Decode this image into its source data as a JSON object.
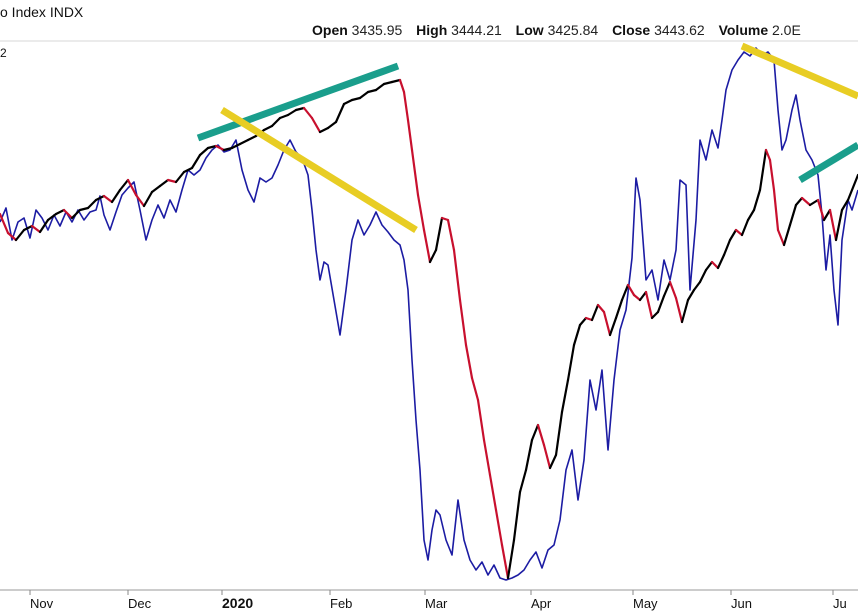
{
  "header": {
    "title": "o Index  INDX",
    "open_label": "Open",
    "open_value": "3435.95",
    "high_label": "High",
    "high_value": "3444.21",
    "low_label": "Low",
    "low_value": "3425.84",
    "close_label": "Close",
    "close_value": "3443.62",
    "volume_label": "Volume",
    "volume_value": "2.0E"
  },
  "y_fragment": "2",
  "chart_data": {
    "type": "line",
    "x_axis": {
      "labels": [
        "Nov",
        "Dec",
        "2020",
        "Feb",
        "Mar",
        "Apr",
        "May",
        "Jun",
        "Ju"
      ],
      "bold_label": "2020"
    },
    "grid": false,
    "series": [
      {
        "role": "price-index",
        "colors": {
          "up": "#000000",
          "down": "#c8102e"
        },
        "values": [
          [
            0,
            214
          ],
          [
            8,
            233
          ],
          [
            16,
            240
          ],
          [
            24,
            230
          ],
          [
            32,
            226
          ],
          [
            40,
            232
          ],
          [
            48,
            220
          ],
          [
            56,
            214
          ],
          [
            64,
            210
          ],
          [
            72,
            218
          ],
          [
            80,
            210
          ],
          [
            88,
            208
          ],
          [
            96,
            200
          ],
          [
            104,
            196
          ],
          [
            112,
            202
          ],
          [
            120,
            190
          ],
          [
            128,
            180
          ],
          [
            136,
            195
          ],
          [
            144,
            206
          ],
          [
            152,
            192
          ],
          [
            160,
            186
          ],
          [
            168,
            180
          ],
          [
            176,
            182
          ],
          [
            184,
            172
          ],
          [
            192,
            168
          ],
          [
            200,
            155
          ],
          [
            208,
            148
          ],
          [
            216,
            146
          ],
          [
            224,
            150
          ],
          [
            232,
            148
          ],
          [
            240,
            144
          ],
          [
            248,
            140
          ],
          [
            256,
            136
          ],
          [
            264,
            130
          ],
          [
            272,
            126
          ],
          [
            280,
            118
          ],
          [
            288,
            115
          ],
          [
            296,
            110
          ],
          [
            304,
            108
          ],
          [
            312,
            118
          ],
          [
            320,
            132
          ],
          [
            328,
            128
          ],
          [
            336,
            122
          ],
          [
            344,
            104
          ],
          [
            352,
            100
          ],
          [
            360,
            98
          ],
          [
            368,
            92
          ],
          [
            376,
            90
          ],
          [
            384,
            84
          ],
          [
            392,
            82
          ],
          [
            400,
            80
          ],
          [
            404,
            92
          ],
          [
            408,
            120
          ],
          [
            412,
            150
          ],
          [
            418,
            195
          ],
          [
            424,
            230
          ],
          [
            430,
            262
          ],
          [
            436,
            250
          ],
          [
            442,
            218
          ],
          [
            448,
            220
          ],
          [
            454,
            250
          ],
          [
            460,
            300
          ],
          [
            466,
            345
          ],
          [
            472,
            378
          ],
          [
            478,
            400
          ],
          [
            484,
            440
          ],
          [
            490,
            475
          ],
          [
            496,
            510
          ],
          [
            502,
            545
          ],
          [
            508,
            578
          ],
          [
            514,
            540
          ],
          [
            520,
            492
          ],
          [
            526,
            470
          ],
          [
            532,
            440
          ],
          [
            538,
            425
          ],
          [
            544,
            445
          ],
          [
            550,
            468
          ],
          [
            556,
            455
          ],
          [
            562,
            412
          ],
          [
            568,
            380
          ],
          [
            574,
            345
          ],
          [
            580,
            325
          ],
          [
            586,
            318
          ],
          [
            592,
            320
          ],
          [
            598,
            305
          ],
          [
            604,
            312
          ],
          [
            610,
            335
          ],
          [
            616,
            318
          ],
          [
            622,
            300
          ],
          [
            628,
            285
          ],
          [
            634,
            295
          ],
          [
            640,
            300
          ],
          [
            646,
            292
          ],
          [
            652,
            318
          ],
          [
            658,
            312
          ],
          [
            664,
            296
          ],
          [
            670,
            282
          ],
          [
            676,
            298
          ],
          [
            682,
            322
          ],
          [
            688,
            300
          ],
          [
            694,
            290
          ],
          [
            700,
            282
          ],
          [
            706,
            270
          ],
          [
            712,
            262
          ],
          [
            718,
            268
          ],
          [
            724,
            255
          ],
          [
            730,
            240
          ],
          [
            736,
            230
          ],
          [
            742,
            235
          ],
          [
            748,
            220
          ],
          [
            754,
            210
          ],
          [
            760,
            190
          ],
          [
            766,
            150
          ],
          [
            770,
            160
          ],
          [
            774,
            190
          ],
          [
            778,
            230
          ],
          [
            784,
            245
          ],
          [
            790,
            225
          ],
          [
            796,
            205
          ],
          [
            802,
            198
          ],
          [
            810,
            205
          ],
          [
            818,
            200
          ],
          [
            824,
            220
          ],
          [
            830,
            210
          ],
          [
            836,
            240
          ],
          [
            842,
            210
          ],
          [
            848,
            200
          ],
          [
            858,
            175
          ]
        ]
      },
      {
        "role": "comparison-index",
        "color": "#1c1ca3",
        "values": [
          [
            0,
            222
          ],
          [
            6,
            208
          ],
          [
            12,
            240
          ],
          [
            18,
            222
          ],
          [
            24,
            218
          ],
          [
            30,
            238
          ],
          [
            36,
            210
          ],
          [
            42,
            218
          ],
          [
            48,
            230
          ],
          [
            54,
            215
          ],
          [
            60,
            226
          ],
          [
            66,
            212
          ],
          [
            72,
            222
          ],
          [
            78,
            210
          ],
          [
            84,
            220
          ],
          [
            90,
            212
          ],
          [
            96,
            210
          ],
          [
            100,
            196
          ],
          [
            104,
            215
          ],
          [
            110,
            230
          ],
          [
            116,
            212
          ],
          [
            122,
            195
          ],
          [
            128,
            188
          ],
          [
            134,
            182
          ],
          [
            140,
            210
          ],
          [
            146,
            240
          ],
          [
            152,
            220
          ],
          [
            158,
            205
          ],
          [
            164,
            218
          ],
          [
            170,
            200
          ],
          [
            176,
            212
          ],
          [
            182,
            190
          ],
          [
            188,
            170
          ],
          [
            194,
            175
          ],
          [
            200,
            170
          ],
          [
            206,
            158
          ],
          [
            212,
            150
          ],
          [
            218,
            145
          ],
          [
            224,
            152
          ],
          [
            230,
            150
          ],
          [
            236,
            140
          ],
          [
            242,
            170
          ],
          [
            248,
            190
          ],
          [
            254,
            202
          ],
          [
            260,
            178
          ],
          [
            266,
            182
          ],
          [
            272,
            178
          ],
          [
            278,
            165
          ],
          [
            284,
            150
          ],
          [
            290,
            140
          ],
          [
            296,
            152
          ],
          [
            302,
            158
          ],
          [
            308,
            175
          ],
          [
            312,
            210
          ],
          [
            316,
            250
          ],
          [
            320,
            280
          ],
          [
            324,
            262
          ],
          [
            328,
            265
          ],
          [
            334,
            300
          ],
          [
            340,
            335
          ],
          [
            346,
            290
          ],
          [
            352,
            240
          ],
          [
            358,
            220
          ],
          [
            364,
            235
          ],
          [
            370,
            225
          ],
          [
            376,
            212
          ],
          [
            382,
            225
          ],
          [
            388,
            232
          ],
          [
            394,
            240
          ],
          [
            400,
            245
          ],
          [
            404,
            260
          ],
          [
            408,
            290
          ],
          [
            412,
            360
          ],
          [
            416,
            420
          ],
          [
            420,
            470
          ],
          [
            424,
            540
          ],
          [
            428,
            560
          ],
          [
            432,
            530
          ],
          [
            436,
            510
          ],
          [
            440,
            515
          ],
          [
            446,
            540
          ],
          [
            452,
            555
          ],
          [
            458,
            500
          ],
          [
            464,
            540
          ],
          [
            470,
            560
          ],
          [
            476,
            570
          ],
          [
            482,
            562
          ],
          [
            488,
            575
          ],
          [
            494,
            565
          ],
          [
            500,
            578
          ],
          [
            506,
            580
          ],
          [
            512,
            578
          ],
          [
            518,
            575
          ],
          [
            524,
            570
          ],
          [
            530,
            560
          ],
          [
            536,
            552
          ],
          [
            542,
            568
          ],
          [
            548,
            550
          ],
          [
            554,
            545
          ],
          [
            560,
            520
          ],
          [
            566,
            470
          ],
          [
            572,
            450
          ],
          [
            578,
            500
          ],
          [
            584,
            460
          ],
          [
            590,
            380
          ],
          [
            596,
            410
          ],
          [
            602,
            370
          ],
          [
            608,
            450
          ],
          [
            614,
            380
          ],
          [
            620,
            330
          ],
          [
            626,
            310
          ],
          [
            632,
            258
          ],
          [
            636,
            178
          ],
          [
            640,
            200
          ],
          [
            646,
            280
          ],
          [
            652,
            270
          ],
          [
            658,
            300
          ],
          [
            664,
            260
          ],
          [
            670,
            280
          ],
          [
            676,
            250
          ],
          [
            680,
            180
          ],
          [
            686,
            185
          ],
          [
            690,
            290
          ],
          [
            696,
            220
          ],
          [
            700,
            140
          ],
          [
            706,
            160
          ],
          [
            712,
            130
          ],
          [
            718,
            148
          ],
          [
            722,
            120
          ],
          [
            726,
            90
          ],
          [
            732,
            70
          ],
          [
            738,
            60
          ],
          [
            744,
            52
          ],
          [
            750,
            56
          ],
          [
            756,
            48
          ],
          [
            762,
            55
          ],
          [
            768,
            52
          ],
          [
            774,
            60
          ],
          [
            778,
            110
          ],
          [
            782,
            150
          ],
          [
            786,
            140
          ],
          [
            792,
            110
          ],
          [
            796,
            95
          ],
          [
            800,
            120
          ],
          [
            806,
            150
          ],
          [
            812,
            160
          ],
          [
            818,
            175
          ],
          [
            822,
            215
          ],
          [
            826,
            270
          ],
          [
            830,
            235
          ],
          [
            834,
            290
          ],
          [
            838,
            325
          ],
          [
            842,
            240
          ],
          [
            848,
            200
          ],
          [
            852,
            210
          ],
          [
            858,
            190
          ]
        ]
      }
    ],
    "annotations": [
      {
        "kind": "trendline",
        "color": "#1a9e8c",
        "from": [
          198,
          138
        ],
        "to": [
          398,
          66
        ]
      },
      {
        "kind": "trendline",
        "color": "#e8cd24",
        "from": [
          222,
          110
        ],
        "to": [
          416,
          230
        ]
      },
      {
        "kind": "trendline",
        "color": "#e8cd24",
        "from": [
          742,
          46
        ],
        "to": [
          858,
          96
        ]
      },
      {
        "kind": "trendline",
        "color": "#1a9e8c",
        "from": [
          800,
          180
        ],
        "to": [
          858,
          145
        ]
      }
    ]
  }
}
